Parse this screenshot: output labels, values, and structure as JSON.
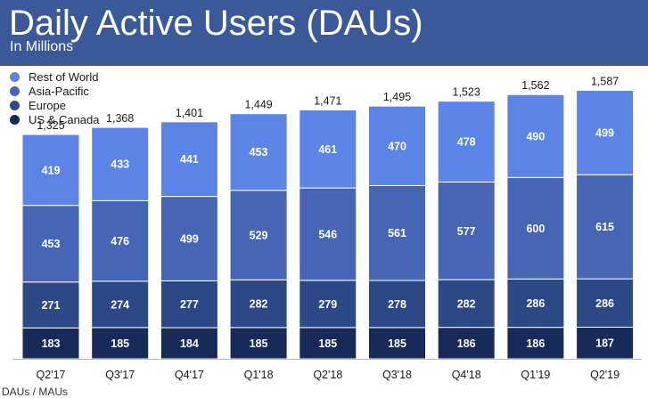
{
  "title": "Daily Active Users (DAUs)",
  "subtitle": "In Millions",
  "footer_note": "DAUs / MAUs",
  "colors": {
    "header_bg": "#3b5998",
    "rest_of_world": "#5b84e6",
    "asia_pacific": "#4666b5",
    "europe": "#2d4885",
    "us_canada": "#172a5a",
    "axis": "#b8b8b8"
  },
  "legend": [
    {
      "label": "Rest of World",
      "color": "#5b84e6"
    },
    {
      "label": "Asia-Pacific",
      "color": "#4666b5"
    },
    {
      "label": "Europe",
      "color": "#2d4885"
    },
    {
      "label": "US & Canada",
      "color": "#172a5a"
    }
  ],
  "chart_data": {
    "type": "bar",
    "stacked": true,
    "title": "Daily Active Users (DAUs)",
    "subtitle": "In Millions",
    "categories": [
      "Q2'17",
      "Q3'17",
      "Q4'17",
      "Q1'18",
      "Q2'18",
      "Q3'18",
      "Q4'18",
      "Q1'19",
      "Q2'19"
    ],
    "totals": [
      "1,325",
      "1,368",
      "1,401",
      "1,449",
      "1,471",
      "1,495",
      "1,523",
      "1,562",
      "1,587"
    ],
    "series": [
      {
        "name": "US & Canada",
        "color": "#172a5a",
        "values": [
          183,
          185,
          184,
          185,
          185,
          185,
          186,
          186,
          187
        ]
      },
      {
        "name": "Europe",
        "color": "#2d4885",
        "values": [
          271,
          274,
          277,
          282,
          279,
          278,
          282,
          286,
          286
        ]
      },
      {
        "name": "Asia-Pacific",
        "color": "#4666b5",
        "values": [
          453,
          476,
          499,
          529,
          546,
          561,
          577,
          600,
          615
        ]
      },
      {
        "name": "Rest of World",
        "color": "#5b84e6",
        "values": [
          419,
          433,
          441,
          453,
          461,
          470,
          478,
          490,
          499
        ]
      }
    ],
    "xlabel": "",
    "ylabel": "",
    "grid": false,
    "legend_position": "top-left"
  }
}
